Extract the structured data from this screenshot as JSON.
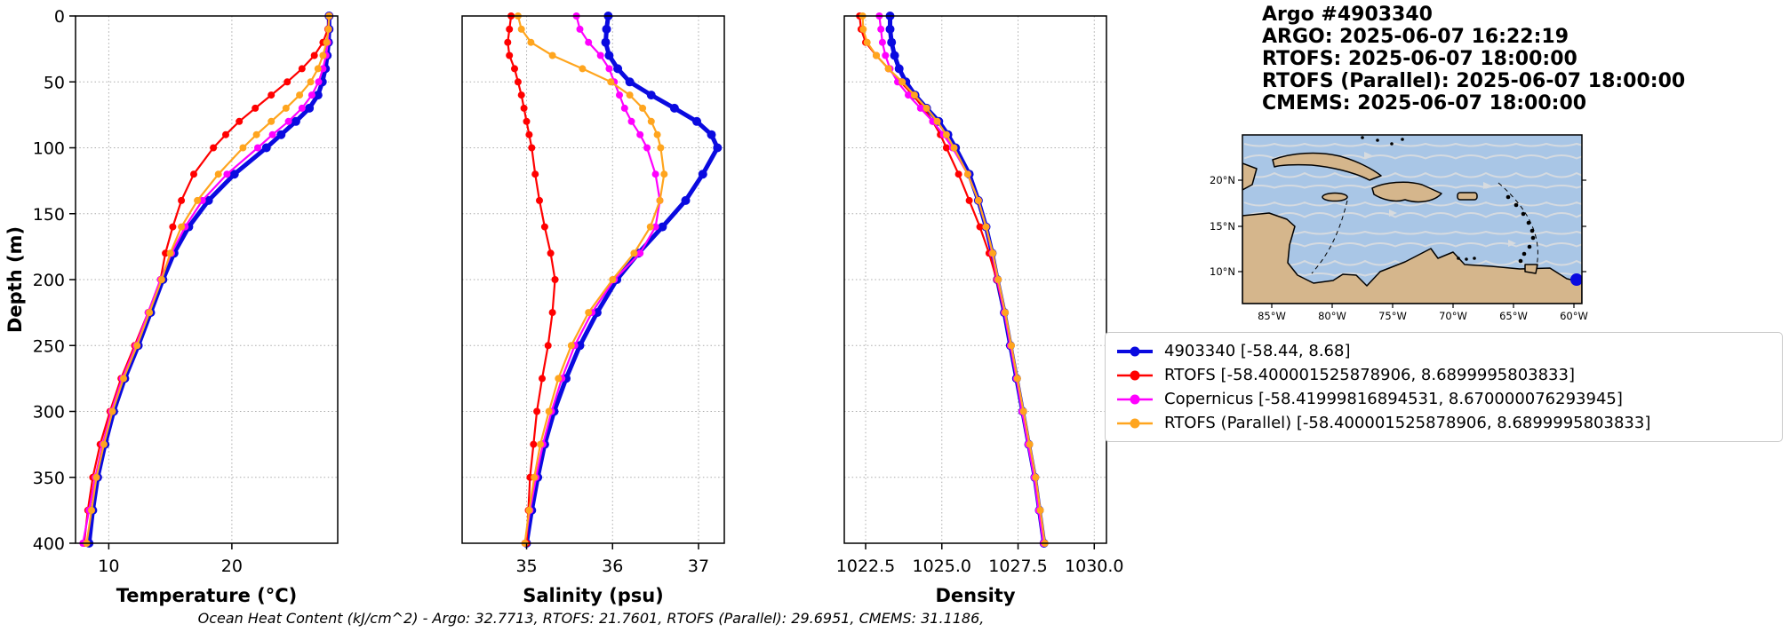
{
  "header": {
    "title": "Argo #4903340",
    "argo_line": "ARGO:  2025-06-07 16:22:19",
    "rtofs_line": "RTOFS: 2025-06-07 18:00:00",
    "rtofs_parallel_line": "RTOFS (Parallel): 2025-06-07 18:00:00",
    "cmems_line": "CMEMS: 2025-06-07 18:00:00"
  },
  "footer": {
    "text": "Ocean Heat Content (kJ/cm^2) - Argo: 32.7713,  RTOFS: 21.7601,  RTOFS (Parallel): 29.6951,  CMEMS: 31.1186,"
  },
  "legend": {
    "entries": [
      {
        "label": "4903340 [-58.44, 8.68]",
        "color": "#0a0ae0"
      },
      {
        "label": "RTOFS [-58.400001525878906, 8.6899995803833]",
        "color": "#ff0000"
      },
      {
        "label": "Copernicus [-58.41999816894531, 8.670000076293945]",
        "color": "#ff00ff"
      },
      {
        "label": "RTOFS (Parallel) [-58.400001525878906, 8.6899995803833]",
        "color": "#ffa51e"
      }
    ]
  },
  "map": {
    "lat_labels": [
      "20°N",
      "15°N",
      "10°N"
    ],
    "lon_labels": [
      "85°W",
      "80°W",
      "75°W",
      "70°W",
      "65°W",
      "60°W"
    ],
    "sea_color": "#a9c6e6",
    "land_color": "#d5b68c",
    "stream_color": "#d7dbdf",
    "marker_color": "#0a0ae0"
  },
  "chart_data": [
    {
      "type": "line",
      "name": "temperature",
      "xlabel": "Temperature (°C)",
      "ylabel": "Depth (m)",
      "xlim": [
        7.3,
        28.6
      ],
      "ylim": [
        0,
        400
      ],
      "xticks": [
        10,
        20
      ],
      "xtick_labels": [
        "10",
        "20"
      ],
      "yticks": [
        0,
        50,
        100,
        150,
        200,
        250,
        300,
        350,
        400
      ],
      "grid": true,
      "depths": [
        0,
        10,
        20,
        30,
        40,
        50,
        60,
        70,
        80,
        90,
        100,
        120,
        140,
        160,
        180,
        200,
        225,
        250,
        275,
        300,
        325,
        350,
        375,
        400
      ],
      "series": [
        {
          "name": "4903340",
          "color": "#0a0ae0",
          "values": [
            27.9,
            27.9,
            27.85,
            27.75,
            27.6,
            27.35,
            27.0,
            26.3,
            25.2,
            24.0,
            22.8,
            20.2,
            18.1,
            16.5,
            15.3,
            14.4,
            13.4,
            12.4,
            11.3,
            10.4,
            9.7,
            9.1,
            8.7,
            8.4
          ]
        },
        {
          "name": "RTOFS",
          "color": "#ff0000",
          "values": [
            27.9,
            27.8,
            27.4,
            26.7,
            25.7,
            24.5,
            23.2,
            21.9,
            20.6,
            19.5,
            18.5,
            16.9,
            15.9,
            15.2,
            14.6,
            14.2,
            13.2,
            12.1,
            11.0,
            10.1,
            9.3,
            8.7,
            8.3,
            8.0
          ]
        },
        {
          "name": "Copernicus",
          "color": "#ff00ff",
          "values": [
            27.9,
            27.85,
            27.8,
            27.65,
            27.4,
            27.05,
            26.5,
            25.7,
            24.6,
            23.3,
            22.1,
            19.6,
            17.6,
            16.2,
            15.1,
            14.2,
            13.2,
            12.2,
            11.1,
            10.2,
            9.5,
            8.9,
            8.4,
            7.9
          ]
        },
        {
          "name": "RTOFS (Parallel)",
          "color": "#ffa51e",
          "values": [
            27.9,
            27.85,
            27.7,
            27.4,
            27.0,
            26.4,
            25.5,
            24.4,
            23.2,
            22.0,
            20.9,
            18.9,
            17.2,
            15.9,
            15.0,
            14.3,
            13.3,
            12.3,
            11.2,
            10.3,
            9.6,
            9.0,
            8.6,
            8.2
          ]
        }
      ]
    },
    {
      "type": "line",
      "name": "salinity",
      "xlabel": "Salinity (psu)",
      "ylabel": "",
      "xlim": [
        34.25,
        37.3
      ],
      "ylim": [
        0,
        400
      ],
      "xticks": [
        35,
        36,
        37
      ],
      "xtick_labels": [
        "35",
        "36",
        "37"
      ],
      "yticks": [
        0,
        50,
        100,
        150,
        200,
        250,
        300,
        350,
        400
      ],
      "grid": true,
      "depths": [
        0,
        10,
        20,
        30,
        40,
        50,
        60,
        70,
        80,
        90,
        100,
        120,
        140,
        160,
        180,
        200,
        225,
        250,
        275,
        300,
        325,
        350,
        375,
        400
      ],
      "series": [
        {
          "name": "4903340",
          "color": "#0a0ae0",
          "values": [
            35.95,
            35.93,
            35.92,
            35.96,
            36.06,
            36.2,
            36.45,
            36.72,
            36.98,
            37.15,
            37.22,
            37.05,
            36.85,
            36.58,
            36.3,
            36.05,
            35.82,
            35.62,
            35.46,
            35.32,
            35.21,
            35.13,
            35.06,
            35.0
          ]
        },
        {
          "name": "RTOFS",
          "color": "#ff0000",
          "values": [
            34.82,
            34.8,
            34.78,
            34.8,
            34.86,
            34.9,
            34.94,
            34.97,
            35.0,
            35.03,
            35.06,
            35.1,
            35.15,
            35.21,
            35.28,
            35.33,
            35.3,
            35.25,
            35.18,
            35.12,
            35.08,
            35.04,
            35.02,
            35.0
          ]
        },
        {
          "name": "Copernicus",
          "color": "#ff00ff",
          "values": [
            35.58,
            35.62,
            35.72,
            35.86,
            35.96,
            36.02,
            36.08,
            36.14,
            36.22,
            36.32,
            36.4,
            36.5,
            36.55,
            36.5,
            36.32,
            36.02,
            35.76,
            35.56,
            35.41,
            35.29,
            35.19,
            35.11,
            35.04,
            34.98
          ]
        },
        {
          "name": "RTOFS (Parallel)",
          "color": "#ffa51e",
          "values": [
            34.9,
            34.94,
            35.05,
            35.3,
            35.65,
            35.98,
            36.2,
            36.35,
            36.45,
            36.52,
            36.56,
            36.6,
            36.55,
            36.44,
            36.25,
            36.0,
            35.72,
            35.52,
            35.37,
            35.26,
            35.16,
            35.09,
            35.03,
            34.98
          ]
        }
      ]
    },
    {
      "type": "line",
      "name": "density",
      "xlabel": "Density",
      "ylabel": "",
      "xlim": [
        1021.8,
        1030.4
      ],
      "ylim": [
        0,
        400
      ],
      "xticks": [
        1022.5,
        1025.0,
        1027.5,
        1030.0
      ],
      "xtick_labels": [
        "1022.5",
        "1025.0",
        "1027.5",
        "1030.0"
      ],
      "yticks": [
        0,
        50,
        100,
        150,
        200,
        250,
        300,
        350,
        400
      ],
      "grid": true,
      "depths": [
        0,
        10,
        20,
        30,
        40,
        50,
        60,
        70,
        80,
        90,
        100,
        120,
        140,
        160,
        180,
        200,
        225,
        250,
        275,
        300,
        325,
        350,
        375,
        400
      ],
      "series": [
        {
          "name": "4903340",
          "color": "#0a0ae0",
          "values": [
            1023.3,
            1023.3,
            1023.35,
            1023.45,
            1023.6,
            1023.82,
            1024.12,
            1024.5,
            1024.9,
            1025.2,
            1025.45,
            1025.9,
            1026.2,
            1026.45,
            1026.65,
            1026.82,
            1027.05,
            1027.25,
            1027.45,
            1027.65,
            1027.85,
            1028.05,
            1028.2,
            1028.35
          ]
        },
        {
          "name": "RTOFS",
          "color": "#ff0000",
          "values": [
            1022.3,
            1022.35,
            1022.5,
            1022.85,
            1023.25,
            1023.65,
            1024.05,
            1024.4,
            1024.7,
            1024.95,
            1025.15,
            1025.55,
            1025.9,
            1026.25,
            1026.55,
            1026.8,
            1027.05,
            1027.25,
            1027.45,
            1027.65,
            1027.85,
            1028.05,
            1028.2,
            1028.35
          ]
        },
        {
          "name": "Copernicus",
          "color": "#ff00ff",
          "values": [
            1022.95,
            1023.0,
            1023.05,
            1023.15,
            1023.3,
            1023.55,
            1023.9,
            1024.3,
            1024.7,
            1025.05,
            1025.35,
            1025.85,
            1026.2,
            1026.45,
            1026.65,
            1026.82,
            1027.05,
            1027.25,
            1027.45,
            1027.63,
            1027.83,
            1028.03,
            1028.18,
            1028.33
          ]
        },
        {
          "name": "RTOFS (Parallel)",
          "color": "#ffa51e",
          "values": [
            1022.4,
            1022.42,
            1022.55,
            1022.85,
            1023.25,
            1023.7,
            1024.1,
            1024.5,
            1024.85,
            1025.15,
            1025.4,
            1025.85,
            1026.2,
            1026.45,
            1026.67,
            1026.85,
            1027.08,
            1027.28,
            1027.48,
            1027.68,
            1027.88,
            1028.08,
            1028.23,
            1028.38
          ]
        }
      ]
    }
  ]
}
